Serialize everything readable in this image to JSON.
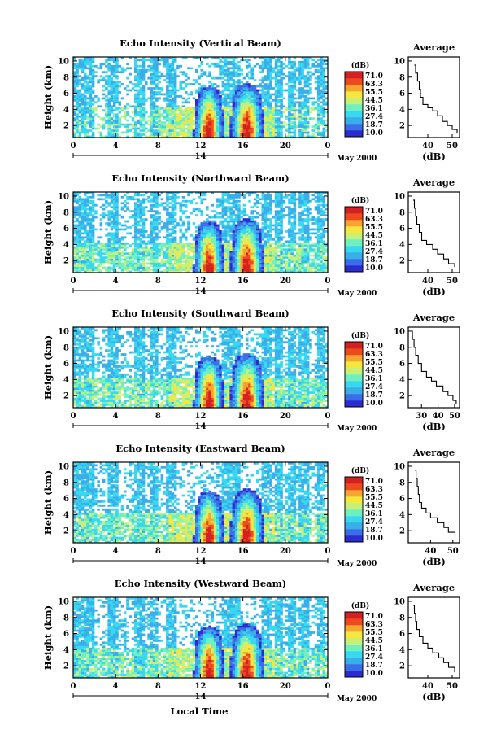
{
  "figure": {
    "shared_xlabel": "Local Time",
    "colorbar_unit": "(dB)",
    "colorbar_ticks": [
      "71.0",
      "63.3",
      "55.5",
      "44.5",
      "36.1",
      "27.4",
      "18.7",
      "10.0"
    ],
    "colors": {
      "scale": [
        "#2b2bd0",
        "#3a6ee8",
        "#3aaee8",
        "#37d8f0",
        "#6ff0c0",
        "#c6f07a",
        "#f5e640",
        "#f5a530",
        "#ee4a20",
        "#d42020"
      ]
    }
  },
  "chart_data": [
    {
      "type": "heatmap",
      "title": "Echo Intensity (Vertical Beam)",
      "ylabel": "Height (km)",
      "x_ticks": [
        "0",
        "4",
        "8",
        "12",
        "16",
        "20",
        "0"
      ],
      "xlim": [
        0,
        24
      ],
      "y_ticks": [
        "2",
        "4",
        "6",
        "8",
        "10"
      ],
      "ylim": [
        0.5,
        10.5
      ],
      "date_label": "14",
      "month_label": "May 2000",
      "colorbar_range": [
        10.0,
        71.0
      ],
      "average_profile": {
        "title": "Average",
        "xlabel": "(dB)",
        "x_ticks": [
          "40",
          "50"
        ],
        "xlim": [
          32,
          53
        ],
        "y_ticks": [
          "2",
          "4",
          "6",
          "8",
          "10"
        ],
        "ylim": [
          0.5,
          10.5
        ],
        "points": [
          [
            34.5,
            9.5
          ],
          [
            35,
            8.5
          ],
          [
            35.8,
            7.5
          ],
          [
            36.5,
            6.5
          ],
          [
            37,
            5.5
          ],
          [
            38,
            4.6
          ],
          [
            40,
            4.2
          ],
          [
            42,
            3.8
          ],
          [
            44,
            3.2
          ],
          [
            46,
            2.5
          ],
          [
            48,
            2.0
          ],
          [
            50,
            1.5
          ],
          [
            52,
            1.0
          ]
        ]
      }
    },
    {
      "type": "heatmap",
      "title": "Echo Intensity (Northward Beam)",
      "ylabel": "Height (km)",
      "x_ticks": [
        "0",
        "4",
        "8",
        "12",
        "16",
        "20",
        "0"
      ],
      "xlim": [
        0,
        24
      ],
      "y_ticks": [
        "2",
        "4",
        "6",
        "8",
        "10"
      ],
      "ylim": [
        0.5,
        10.5
      ],
      "date_label": "14",
      "month_label": "May 2000",
      "colorbar_range": [
        10.0,
        71.0
      ],
      "average_profile": {
        "title": "Average",
        "xlabel": "(dB)",
        "x_ticks": [
          "40",
          "50"
        ],
        "xlim": [
          32,
          53
        ],
        "y_ticks": [
          "2",
          "4",
          "6",
          "8",
          "10"
        ],
        "ylim": [
          0.5,
          10.5
        ],
        "points": [
          [
            34,
            9.5
          ],
          [
            34.5,
            8.5
          ],
          [
            35,
            7.5
          ],
          [
            35.5,
            6.5
          ],
          [
            36.5,
            5.5
          ],
          [
            37.5,
            4.5
          ],
          [
            39.5,
            4.0
          ],
          [
            42,
            3.4
          ],
          [
            44,
            2.8
          ],
          [
            46.5,
            2.2
          ],
          [
            48.5,
            1.6
          ],
          [
            51,
            1.2
          ]
        ]
      }
    },
    {
      "type": "heatmap",
      "title": "Echo Intensity (Southward Beam)",
      "ylabel": "Height (km)",
      "x_ticks": [
        "0",
        "4",
        "8",
        "12",
        "16",
        "20",
        "0"
      ],
      "xlim": [
        0,
        24
      ],
      "y_ticks": [
        "2",
        "4",
        "6",
        "8",
        "10"
      ],
      "ylim": [
        0.5,
        10.5
      ],
      "date_label": "14",
      "month_label": "May 2000",
      "colorbar_range": [
        10.0,
        71.0
      ],
      "average_profile": {
        "title": "Average",
        "xlabel": "(dB)",
        "x_ticks": [
          "30",
          "40",
          "50"
        ],
        "xlim": [
          22,
          53
        ],
        "y_ticks": [
          "2",
          "4",
          "6",
          "8",
          "10"
        ],
        "ylim": [
          0.5,
          10.5
        ],
        "points": [
          [
            24,
            10
          ],
          [
            24.5,
            9
          ],
          [
            25.5,
            8
          ],
          [
            26.5,
            7
          ],
          [
            28,
            6
          ],
          [
            30,
            5
          ],
          [
            33,
            4.3
          ],
          [
            36,
            3.8
          ],
          [
            39,
            3.2
          ],
          [
            43,
            2.5
          ],
          [
            46,
            2.0
          ],
          [
            49,
            1.4
          ],
          [
            51,
            1.0
          ]
        ]
      }
    },
    {
      "type": "heatmap",
      "title": "Echo Intensity (Eastward Beam)",
      "ylabel": "Height (km)",
      "x_ticks": [
        "0",
        "4",
        "8",
        "12",
        "16",
        "20",
        "0"
      ],
      "xlim": [
        0,
        24
      ],
      "y_ticks": [
        "2",
        "4",
        "6",
        "8",
        "10"
      ],
      "ylim": [
        0.5,
        10.5
      ],
      "date_label": "14",
      "month_label": "May 2000",
      "colorbar_range": [
        10.0,
        71.0
      ],
      "average_profile": {
        "title": "Average",
        "xlabel": "(dB)",
        "x_ticks": [
          "40",
          "50"
        ],
        "xlim": [
          30,
          53
        ],
        "y_ticks": [
          "2",
          "4",
          "6",
          "8",
          "10"
        ],
        "ylim": [
          0.5,
          10.5
        ],
        "points": [
          [
            33,
            9.5
          ],
          [
            33.5,
            8.5
          ],
          [
            34,
            7.5
          ],
          [
            34.5,
            6.5
          ],
          [
            35,
            5.5
          ],
          [
            36,
            4.8
          ],
          [
            38,
            4.2
          ],
          [
            40,
            3.6
          ],
          [
            43,
            3.0
          ],
          [
            46,
            2.4
          ],
          [
            48,
            1.8
          ],
          [
            51,
            1.2
          ]
        ]
      }
    },
    {
      "type": "heatmap",
      "title": "Echo Intensity (Westward Beam)",
      "ylabel": "Height (km)",
      "x_ticks": [
        "0",
        "4",
        "8",
        "12",
        "16",
        "20",
        "0"
      ],
      "xlim": [
        0,
        24
      ],
      "y_ticks": [
        "2",
        "4",
        "6",
        "8",
        "10"
      ],
      "ylim": [
        0.5,
        10.5
      ],
      "date_label": "14",
      "month_label": "May 2000",
      "colorbar_range": [
        10.0,
        71.0
      ],
      "average_profile": {
        "title": "Average",
        "xlabel": "(dB)",
        "x_ticks": [
          "40",
          "50"
        ],
        "xlim": [
          32,
          53
        ],
        "y_ticks": [
          "2",
          "4",
          "6",
          "8",
          "10"
        ],
        "ylim": [
          0.5,
          10.5
        ],
        "points": [
          [
            34,
            9.5
          ],
          [
            34.5,
            8.5
          ],
          [
            35,
            7.5
          ],
          [
            35.5,
            6.5
          ],
          [
            36.5,
            5.6
          ],
          [
            38,
            4.8
          ],
          [
            40,
            4.2
          ],
          [
            42,
            3.6
          ],
          [
            44.5,
            3.0
          ],
          [
            46.5,
            2.4
          ],
          [
            48.5,
            1.8
          ],
          [
            51,
            1.2
          ]
        ]
      }
    }
  ]
}
